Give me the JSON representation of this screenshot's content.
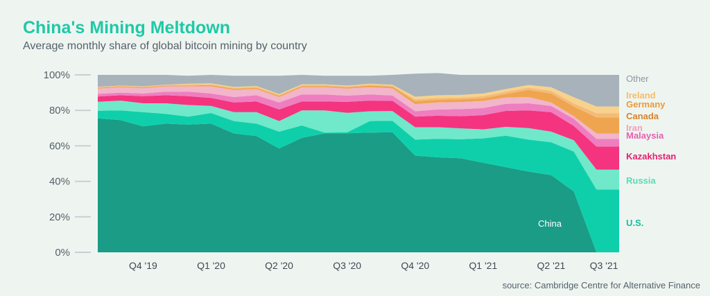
{
  "header": {
    "title": "China's Mining Meltdown",
    "subtitle": "Average monthly share of global bitcoin mining by country"
  },
  "footer": {
    "source": "source: Cambridge Centre for Alternative Finance"
  },
  "chart_data": {
    "type": "area",
    "stacked": true,
    "normalized": true,
    "x": [
      "2019-09",
      "2019-10",
      "2019-11",
      "2019-12",
      "2020-01",
      "2020-02",
      "2020-03",
      "2020-04",
      "2020-05",
      "2020-06",
      "2020-07",
      "2020-08",
      "2020-09",
      "2020-10",
      "2020-11",
      "2020-12",
      "2021-01",
      "2021-02",
      "2021-03",
      "2021-04",
      "2021-05",
      "2021-06",
      "2021-07",
      "2021-08"
    ],
    "x_tick_labels": [
      "Q4 '19",
      "Q1 '20",
      "Q2 '20",
      "Q3 '20",
      "Q4 '20",
      "Q1 '21",
      "Q2 '21",
      "Q3 '21"
    ],
    "y_tick_labels": [
      "0%",
      "20%",
      "40%",
      "60%",
      "80%",
      "100%"
    ],
    "ylim": [
      0,
      100
    ],
    "series": [
      {
        "name": "China",
        "color": "#1a9c86",
        "values": [
          75.5,
          74.5,
          71,
          72.5,
          72,
          72.5,
          67,
          65.5,
          58.5,
          64.5,
          67,
          67.1,
          67.5,
          67.6,
          54.5,
          53.5,
          53,
          50.5,
          48,
          45.5,
          43.5,
          34.3,
          0,
          0
        ]
      },
      {
        "name": "U.S.",
        "color": "#0fcfab",
        "values": [
          4.3,
          5.5,
          8,
          5.5,
          4.5,
          6,
          7,
          7,
          9.5,
          7,
          0.5,
          0.5,
          6.5,
          6.5,
          9,
          10.5,
          10.7,
          13.7,
          17.7,
          18,
          18.5,
          22.5,
          35.4,
          35.4
        ]
      },
      {
        "name": "Russia",
        "color": "#6fe9c9",
        "values": [
          5,
          5.5,
          5,
          6,
          6.5,
          4,
          5,
          6.5,
          6,
          8.5,
          12.5,
          11,
          5.5,
          5.5,
          7,
          6.5,
          6.2,
          5.1,
          5,
          6.5,
          6,
          6.4,
          11.2,
          11.2
        ]
      },
      {
        "name": "Kazakhstan",
        "color": "#f4347f",
        "values": [
          3,
          3,
          4,
          4.5,
          5,
          4.5,
          5.5,
          6,
          6.5,
          5,
          5,
          6.2,
          6,
          5.8,
          6,
          6.5,
          6.8,
          8,
          9,
          10,
          11,
          8,
          13,
          13
        ]
      },
      {
        "name": "Malaysia",
        "color": "#ef7ec0",
        "values": [
          1.5,
          1.5,
          1.5,
          2,
          2.5,
          2.5,
          3,
          3.5,
          4,
          4,
          4,
          3.5,
          3.5,
          3,
          3,
          3.5,
          4,
          4,
          4,
          4,
          3.5,
          4,
          4.3,
          4.3
        ]
      },
      {
        "name": "Iran",
        "color": "#f2b5cc",
        "values": [
          3,
          3,
          3,
          3,
          3,
          4,
          4,
          3.5,
          3,
          4,
          4,
          4,
          4,
          4,
          4,
          4,
          4,
          4,
          3.5,
          3.5,
          2,
          1.5,
          3.1,
          3.1
        ]
      },
      {
        "name": "Canada",
        "color": "#efa54f",
        "values": [
          0.5,
          0.5,
          0.5,
          0.5,
          0.5,
          0.7,
          0.7,
          0.7,
          0.7,
          0.7,
          0.7,
          0.7,
          1,
          1,
          1.7,
          1.5,
          1.5,
          1.5,
          2,
          4,
          5,
          5.5,
          9,
          9
        ]
      },
      {
        "name": "Germany",
        "color": "#f4bb78",
        "values": [
          0.3,
          0.3,
          0.3,
          0.3,
          0.5,
          0.5,
          0.5,
          0.5,
          0.5,
          0.5,
          0.5,
          0.5,
          0.5,
          0.5,
          1,
          1,
          1,
          1.2,
          1.3,
          1.3,
          1.5,
          1.7,
          2.4,
          2.4
        ]
      },
      {
        "name": "Ireland",
        "color": "#f8d28c",
        "values": [
          0.2,
          0.2,
          0.2,
          0.2,
          0.5,
          0.5,
          0.5,
          0.5,
          0.5,
          0.5,
          0.5,
          0.5,
          0.5,
          0.5,
          1.5,
          1.5,
          1.5,
          1.5,
          1.5,
          1.5,
          2,
          3.5,
          3.8,
          3.8
        ]
      },
      {
        "name": "Other",
        "color": "#a8b2ba",
        "values": [
          6.7,
          6,
          6.5,
          5.5,
          4.5,
          4.8,
          6.3,
          5.8,
          10.3,
          5.3,
          4.8,
          5.5,
          4.5,
          5.6,
          13,
          12.5,
          11.3,
          10.5,
          8,
          5.7,
          7,
          12.6,
          17.8,
          17.8
        ]
      }
    ],
    "labels": {
      "Other": "Other",
      "Ireland": "Ireland",
      "Germany": "Germany",
      "Canada": "Canada",
      "Iran": "Iran",
      "Malaysia": "Malaysia",
      "Kazakhstan": "Kazakhstan",
      "Russia": "Russia",
      "U.S.": "U.S.",
      "China": "China"
    },
    "grid": false,
    "legend": "right"
  }
}
